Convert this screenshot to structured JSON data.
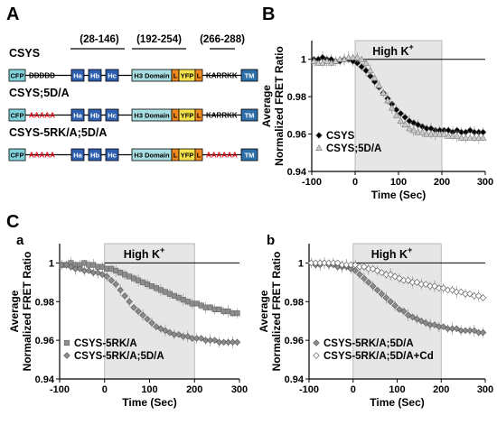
{
  "panels": {
    "A": "A",
    "B": "B",
    "C": "C",
    "Ca": "a",
    "Cb": "b"
  },
  "diagram": {
    "ranges": [
      "(28-146)",
      "(192-254)",
      "(266-288)"
    ],
    "constructs": [
      {
        "name": "CSYS",
        "seq1": {
          "text": "DDDDD",
          "color": "black"
        },
        "seq2": {
          "text": "KARRKK",
          "color": "black"
        },
        "domains": {
          "cfp": "CFP",
          "ha": "Ha",
          "hb": "Hb",
          "hc": "Hc",
          "h3": "H3 Domain",
          "l": "L",
          "yfp": "YFP",
          "tm": "TM"
        }
      },
      {
        "name": "CSYS;5D/A",
        "seq1": {
          "text": "AAAAA",
          "color": "red"
        },
        "seq2": {
          "text": "KARRKK",
          "color": "black"
        },
        "domains": {
          "cfp": "CFP",
          "ha": "Ha",
          "hb": "Hb",
          "hc": "Hc",
          "h3": "H3 Domain",
          "l": "L",
          "yfp": "YFP",
          "tm": "TM"
        }
      },
      {
        "name": "CSYS-5RK/A;5D/A",
        "seq1": {
          "text": "AAAAA",
          "color": "red"
        },
        "seq2": {
          "text": "AAAAAA",
          "color": "red"
        },
        "domains": {
          "cfp": "CFP",
          "ha": "Ha",
          "hb": "Hb",
          "hc": "Hc",
          "h3": "H3 Domain",
          "l": "L",
          "yfp": "YFP",
          "tm": "TM"
        }
      }
    ],
    "colors": {
      "cfp": "#7fd4dc",
      "helix": "#2e5fb0",
      "h3": "#a8dde2",
      "linker": "#f08a1e",
      "yfp": "#f5e24a",
      "tm": "#2e6fa8",
      "red_seq": "#e8141e"
    }
  },
  "chart_data": [
    {
      "id": "B",
      "type": "scatter",
      "ylabel": "Average\nNormalized FRET Ratio",
      "xlabel": "Time (Sec)",
      "xlim": [
        -100,
        300
      ],
      "ylim": [
        0.94,
        1.01
      ],
      "xticks": [
        -100,
        0,
        100,
        200,
        300
      ],
      "yticks": [
        0.94,
        0.96,
        0.98,
        1
      ],
      "ytick_labels": [
        "0.94",
        "0.96",
        "0.98",
        "1"
      ],
      "shade": {
        "label": "High K+",
        "from": 0,
        "to": 200
      },
      "legend_position": "lower-left",
      "series": [
        {
          "name": "CSYS",
          "marker": "diamond",
          "fill": "#000000",
          "x": [
            -95,
            -85,
            -75,
            -65,
            -55,
            -45,
            -35,
            -25,
            -15,
            -5,
            5,
            15,
            25,
            35,
            45,
            55,
            65,
            75,
            85,
            95,
            105,
            115,
            125,
            135,
            145,
            155,
            165,
            175,
            185,
            195,
            205,
            215,
            225,
            235,
            245,
            255,
            265,
            275,
            285,
            295
          ],
          "y": [
            1.0,
            1.0,
            1.001,
            1.0,
            1.0,
            0.999,
            0.999,
            1.0,
            1.0,
            0.999,
            0.998,
            0.996,
            0.994,
            0.991,
            0.988,
            0.985,
            0.982,
            0.979,
            0.976,
            0.973,
            0.971,
            0.969,
            0.967,
            0.966,
            0.965,
            0.964,
            0.963,
            0.963,
            0.962,
            0.962,
            0.962,
            0.962,
            0.961,
            0.962,
            0.961,
            0.961,
            0.962,
            0.961,
            0.961,
            0.961
          ]
        },
        {
          "name": "CSYS;5D/A",
          "marker": "triangle",
          "fill": "#cccccc",
          "x": [
            -95,
            -85,
            -75,
            -65,
            -55,
            -45,
            -35,
            -25,
            -15,
            -5,
            5,
            15,
            25,
            35,
            45,
            55,
            65,
            75,
            85,
            95,
            105,
            115,
            125,
            135,
            145,
            155,
            165,
            175,
            185,
            195,
            205,
            215,
            225,
            235,
            245,
            255,
            265,
            275,
            285,
            295
          ],
          "y": [
            0.999,
            0.998,
            0.998,
            0.999,
            0.998,
            0.999,
            1.0,
            1.0,
            1.001,
            1.001,
            1.001,
            1.0,
            0.998,
            0.994,
            0.99,
            0.986,
            0.982,
            0.978,
            0.974,
            0.97,
            0.967,
            0.965,
            0.963,
            0.962,
            0.961,
            0.961,
            0.96,
            0.96,
            0.96,
            0.96,
            0.96,
            0.959,
            0.959,
            0.959,
            0.958,
            0.958,
            0.958,
            0.958,
            0.958,
            0.958
          ]
        }
      ]
    },
    {
      "id": "Ca",
      "type": "scatter",
      "ylabel": "Average\nNormalized FRET Ratio",
      "xlabel": "Time (Sec)",
      "xlim": [
        -100,
        300
      ],
      "ylim": [
        0.94,
        1.01
      ],
      "xticks": [
        -100,
        0,
        100,
        200,
        300
      ],
      "yticks": [
        0.94,
        0.96,
        0.98,
        1
      ],
      "ytick_labels": [
        "0.94",
        "0.96",
        "0.98",
        "1"
      ],
      "shade": {
        "label": "High K+",
        "from": 0,
        "to": 200
      },
      "legend_position": "lower-left",
      "series": [
        {
          "name": "CSYS-5RK/A",
          "marker": "square",
          "fill": "#8c8c8c",
          "x": [
            -95,
            -85,
            -75,
            -65,
            -55,
            -45,
            -35,
            -25,
            -15,
            -5,
            5,
            15,
            25,
            35,
            45,
            55,
            65,
            75,
            85,
            95,
            105,
            115,
            125,
            135,
            145,
            155,
            165,
            175,
            185,
            195,
            205,
            215,
            225,
            235,
            245,
            255,
            265,
            275,
            285,
            295
          ],
          "y": [
            0.999,
            0.999,
            1.0,
            0.999,
            0.999,
            1.0,
            0.999,
            0.999,
            0.998,
            0.998,
            0.997,
            0.997,
            0.996,
            0.995,
            0.994,
            0.993,
            0.992,
            0.991,
            0.99,
            0.989,
            0.988,
            0.987,
            0.986,
            0.985,
            0.984,
            0.983,
            0.982,
            0.981,
            0.98,
            0.979,
            0.979,
            0.978,
            0.977,
            0.977,
            0.976,
            0.976,
            0.975,
            0.975,
            0.974,
            0.974
          ]
        },
        {
          "name": "CSYS-5RK/A;5D/A",
          "marker": "diamond",
          "fill": "#8c8c8c",
          "x": [
            -95,
            -85,
            -75,
            -65,
            -55,
            -45,
            -35,
            -25,
            -15,
            -5,
            5,
            15,
            25,
            35,
            45,
            55,
            65,
            75,
            85,
            95,
            105,
            115,
            125,
            135,
            145,
            155,
            165,
            175,
            185,
            195,
            205,
            215,
            225,
            235,
            245,
            255,
            265,
            275,
            285,
            295
          ],
          "y": [
            0.999,
            0.999,
            0.998,
            0.997,
            0.997,
            0.996,
            0.996,
            0.995,
            0.995,
            0.994,
            0.993,
            0.991,
            0.989,
            0.986,
            0.983,
            0.98,
            0.977,
            0.975,
            0.973,
            0.971,
            0.969,
            0.967,
            0.966,
            0.965,
            0.964,
            0.963,
            0.963,
            0.962,
            0.962,
            0.961,
            0.961,
            0.961,
            0.96,
            0.96,
            0.96,
            0.959,
            0.959,
            0.959,
            0.959,
            0.959
          ]
        }
      ]
    },
    {
      "id": "Cb",
      "type": "scatter",
      "ylabel": "Average\nNormalized FRET Ratio",
      "xlabel": "Time (Sec)",
      "xlim": [
        -100,
        300
      ],
      "ylim": [
        0.94,
        1.01
      ],
      "xticks": [
        -100,
        0,
        100,
        200,
        300
      ],
      "yticks": [
        0.94,
        0.96,
        0.98,
        1
      ],
      "ytick_labels": [
        "0.94",
        "0.96",
        "0.98",
        "1"
      ],
      "shade": {
        "label": "High K+",
        "from": 0,
        "to": 200
      },
      "legend_position": "lower-left",
      "series": [
        {
          "name": "CSYS-5RK/A;5D/A",
          "marker": "diamond",
          "fill": "#8c8c8c",
          "x": [
            -95,
            -85,
            -75,
            -65,
            -55,
            -45,
            -35,
            -25,
            -15,
            -5,
            5,
            15,
            25,
            35,
            45,
            55,
            65,
            75,
            85,
            95,
            105,
            115,
            125,
            135,
            145,
            155,
            165,
            175,
            185,
            195,
            205,
            215,
            225,
            235,
            245,
            255,
            265,
            275,
            285,
            295
          ],
          "y": [
            1.0,
            0.999,
            0.999,
            1.0,
            0.999,
            0.999,
            0.998,
            0.998,
            0.998,
            0.997,
            0.996,
            0.994,
            0.992,
            0.99,
            0.988,
            0.986,
            0.984,
            0.982,
            0.98,
            0.978,
            0.976,
            0.975,
            0.973,
            0.972,
            0.971,
            0.97,
            0.969,
            0.968,
            0.968,
            0.967,
            0.967,
            0.966,
            0.966,
            0.966,
            0.965,
            0.965,
            0.965,
            0.965,
            0.964,
            0.964
          ]
        },
        {
          "name": "CSYS-5RK/A;5D/A+Cd",
          "marker": "diamond",
          "fill": "#ffffff",
          "x": [
            -95,
            -85,
            -75,
            -65,
            -55,
            -45,
            -35,
            -25,
            -15,
            -5,
            5,
            15,
            25,
            35,
            45,
            55,
            65,
            75,
            85,
            95,
            105,
            115,
            125,
            135,
            145,
            155,
            165,
            175,
            185,
            195,
            205,
            215,
            225,
            235,
            245,
            255,
            265,
            275,
            285,
            295
          ],
          "y": [
            1.0,
            1.0,
            1.0,
            1.0,
            1.0,
            1.0,
            1.0,
            0.999,
            0.999,
            0.999,
            0.999,
            0.998,
            0.998,
            0.997,
            0.997,
            0.996,
            0.995,
            0.994,
            0.994,
            0.993,
            0.992,
            0.991,
            0.991,
            0.99,
            0.99,
            0.989,
            0.989,
            0.988,
            0.988,
            0.987,
            0.987,
            0.986,
            0.986,
            0.985,
            0.985,
            0.984,
            0.984,
            0.983,
            0.983,
            0.982
          ]
        }
      ]
    }
  ]
}
